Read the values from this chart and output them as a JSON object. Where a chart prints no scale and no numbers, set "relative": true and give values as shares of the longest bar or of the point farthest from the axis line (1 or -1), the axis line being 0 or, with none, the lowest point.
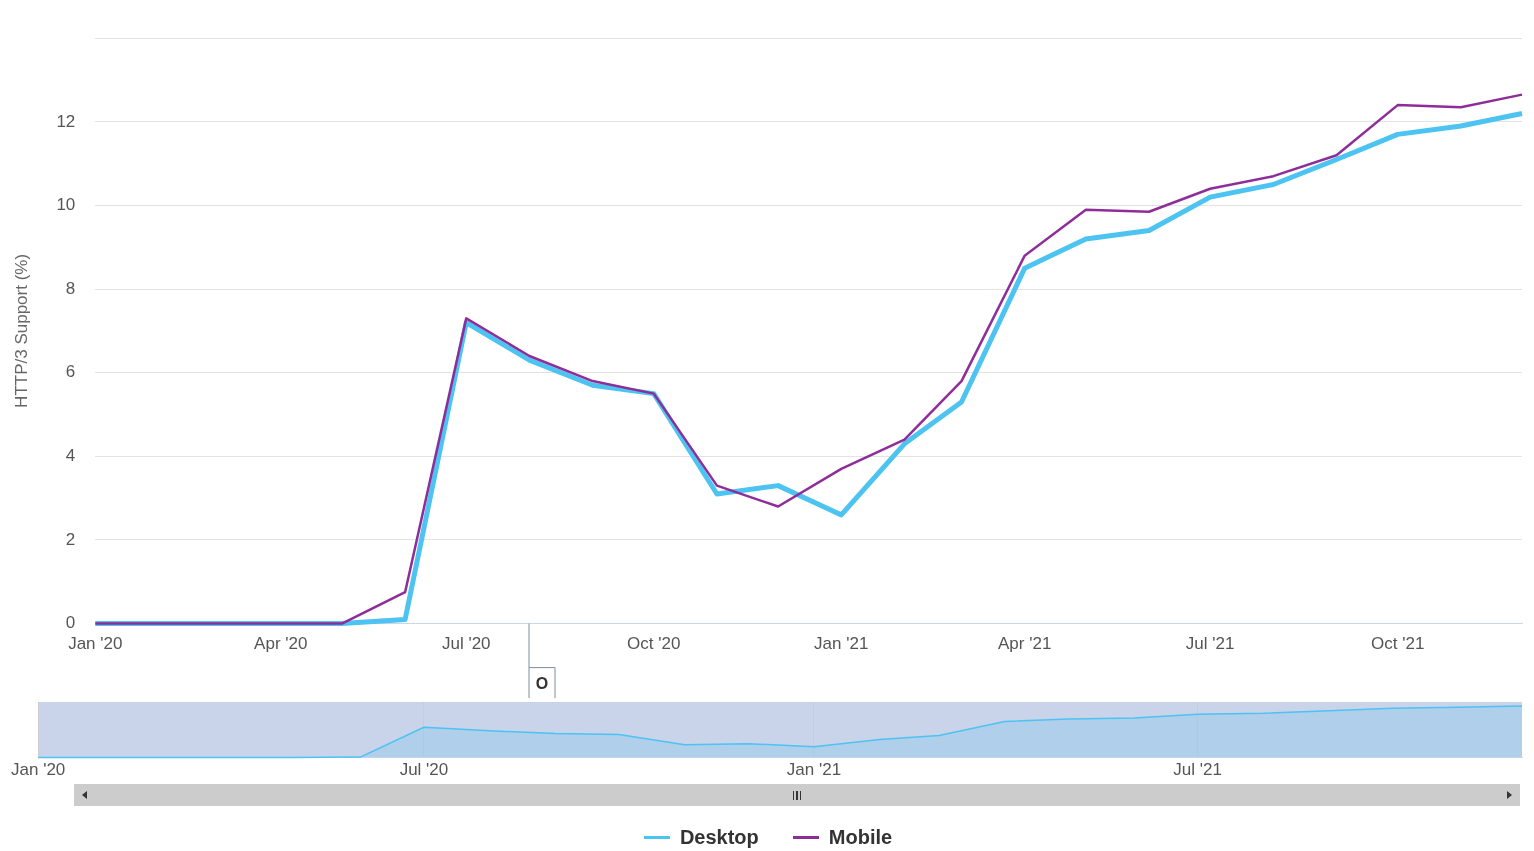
{
  "chart_data": [
    {
      "type": "line",
      "ylabel": "HTTP/3 Support (%)",
      "x": [
        "2020-01",
        "2020-02",
        "2020-03",
        "2020-04",
        "2020-05",
        "2020-06",
        "2020-07",
        "2020-08",
        "2020-09",
        "2020-10",
        "2020-11",
        "2020-12",
        "2021-01",
        "2021-02",
        "2021-03",
        "2021-04",
        "2021-05",
        "2021-06",
        "2021-07",
        "2021-08",
        "2021-09",
        "2021-10",
        "2021-11",
        "2021-12"
      ],
      "series": [
        {
          "name": "Desktop",
          "color": "#4cc3f0",
          "values": [
            0,
            0,
            0,
            0,
            0,
            0.1,
            7.2,
            6.3,
            5.7,
            5.5,
            3.1,
            3.3,
            2.6,
            4.3,
            5.3,
            8.5,
            9.2,
            9.4,
            10.2,
            10.5,
            11.1,
            11.7,
            11.9,
            12.2
          ]
        },
        {
          "name": "Mobile",
          "color": "#8e2d9a",
          "values": [
            0,
            0,
            0,
            0,
            0,
            0.75,
            7.3,
            6.4,
            5.8,
            5.5,
            3.3,
            2.8,
            3.7,
            4.4,
            5.8,
            8.8,
            9.9,
            9.85,
            10.4,
            10.7,
            11.2,
            12.4,
            12.35,
            12.65
          ]
        }
      ],
      "xlim": [
        "2020-01",
        "2021-12"
      ],
      "xticks": [
        {
          "value": "2020-01",
          "label": "Jan '20"
        },
        {
          "value": "2020-04",
          "label": "Apr '20"
        },
        {
          "value": "2020-07",
          "label": "Jul '20"
        },
        {
          "value": "2020-10",
          "label": "Oct '20"
        },
        {
          "value": "2021-01",
          "label": "Jan '21"
        },
        {
          "value": "2021-04",
          "label": "Apr '21"
        },
        {
          "value": "2021-07",
          "label": "Jul '21"
        },
        {
          "value": "2021-10",
          "label": "Oct '21"
        }
      ],
      "ylim": [
        0,
        14
      ],
      "yticks": [
        0,
        2,
        4,
        6,
        8,
        10,
        12,
        {
          "value": 14,
          "label": null
        }
      ],
      "grid": "y",
      "legend": "bottom",
      "annotations": [
        "O"
      ]
    },
    {
      "type": "area",
      "relative": true,
      "tick_labels": "x",
      "grid": "x",
      "x": [
        "2020-01",
        "2020-02",
        "2020-03",
        "2020-04",
        "2020-05",
        "2020-06",
        "2020-07",
        "2020-08",
        "2020-09",
        "2020-10",
        "2020-11",
        "2020-12",
        "2021-01",
        "2021-02",
        "2021-03",
        "2021-04",
        "2021-05",
        "2021-06",
        "2021-07",
        "2021-08",
        "2021-09",
        "2021-10",
        "2021-11",
        "2021-12"
      ],
      "series": [
        {
          "color": "#4cc3f0",
          "values": [
            0,
            0,
            0,
            0,
            0,
            0.01,
            0.59,
            0.52,
            0.47,
            0.45,
            0.25,
            0.27,
            0.21,
            0.35,
            0.43,
            0.7,
            0.75,
            0.77,
            0.84,
            0.86,
            0.91,
            0.96,
            0.98,
            1
          ]
        }
      ],
      "xlim": [
        "2020-01",
        "2021-12"
      ],
      "xticks": [
        {
          "value": "2020-01",
          "label": "Jan '20"
        },
        {
          "value": "2020-07",
          "label": "Jul '20"
        },
        {
          "value": "2021-01",
          "label": "Jan '21"
        },
        {
          "value": "2021-07",
          "label": "Jul '21"
        }
      ]
    }
  ]
}
